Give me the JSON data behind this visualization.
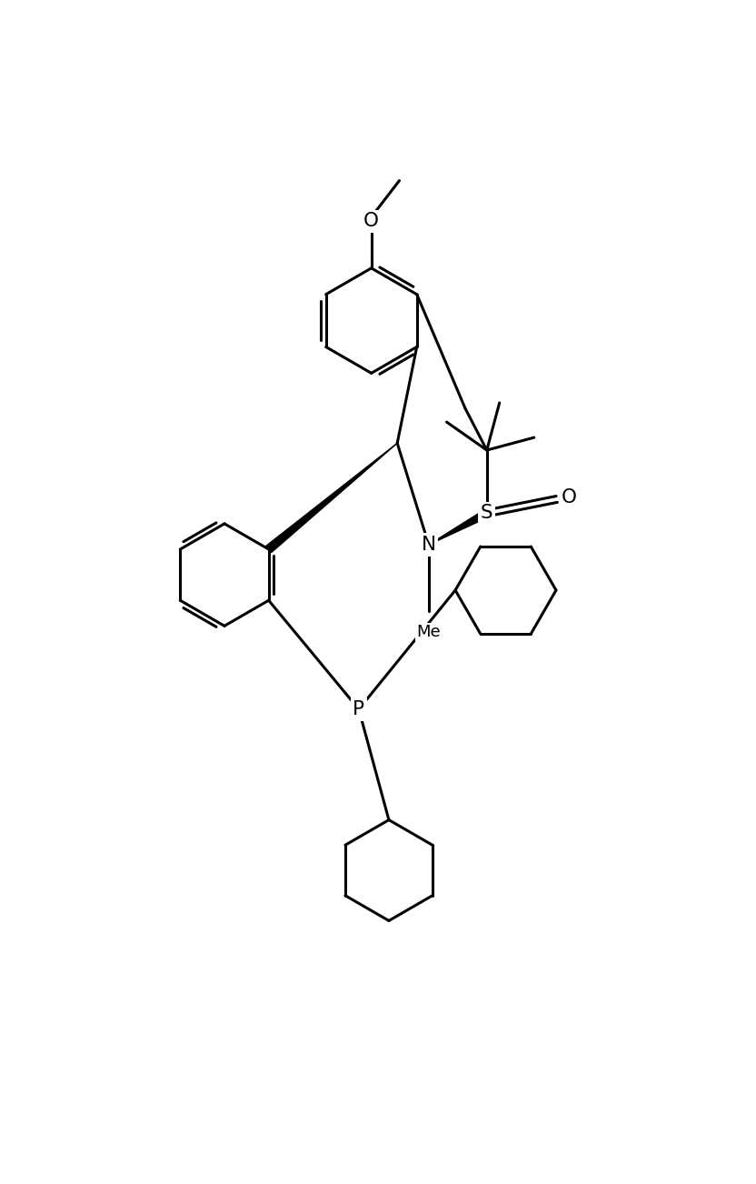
{
  "bg_color": "#ffffff",
  "lw": 2.2,
  "figsize": [
    8.32,
    13.02
  ],
  "dpi": 100,
  "atoms": {
    "O_ome_label": "O",
    "N_label": "N",
    "S_label": "S",
    "O_so_label": "O",
    "P_label": "P"
  }
}
